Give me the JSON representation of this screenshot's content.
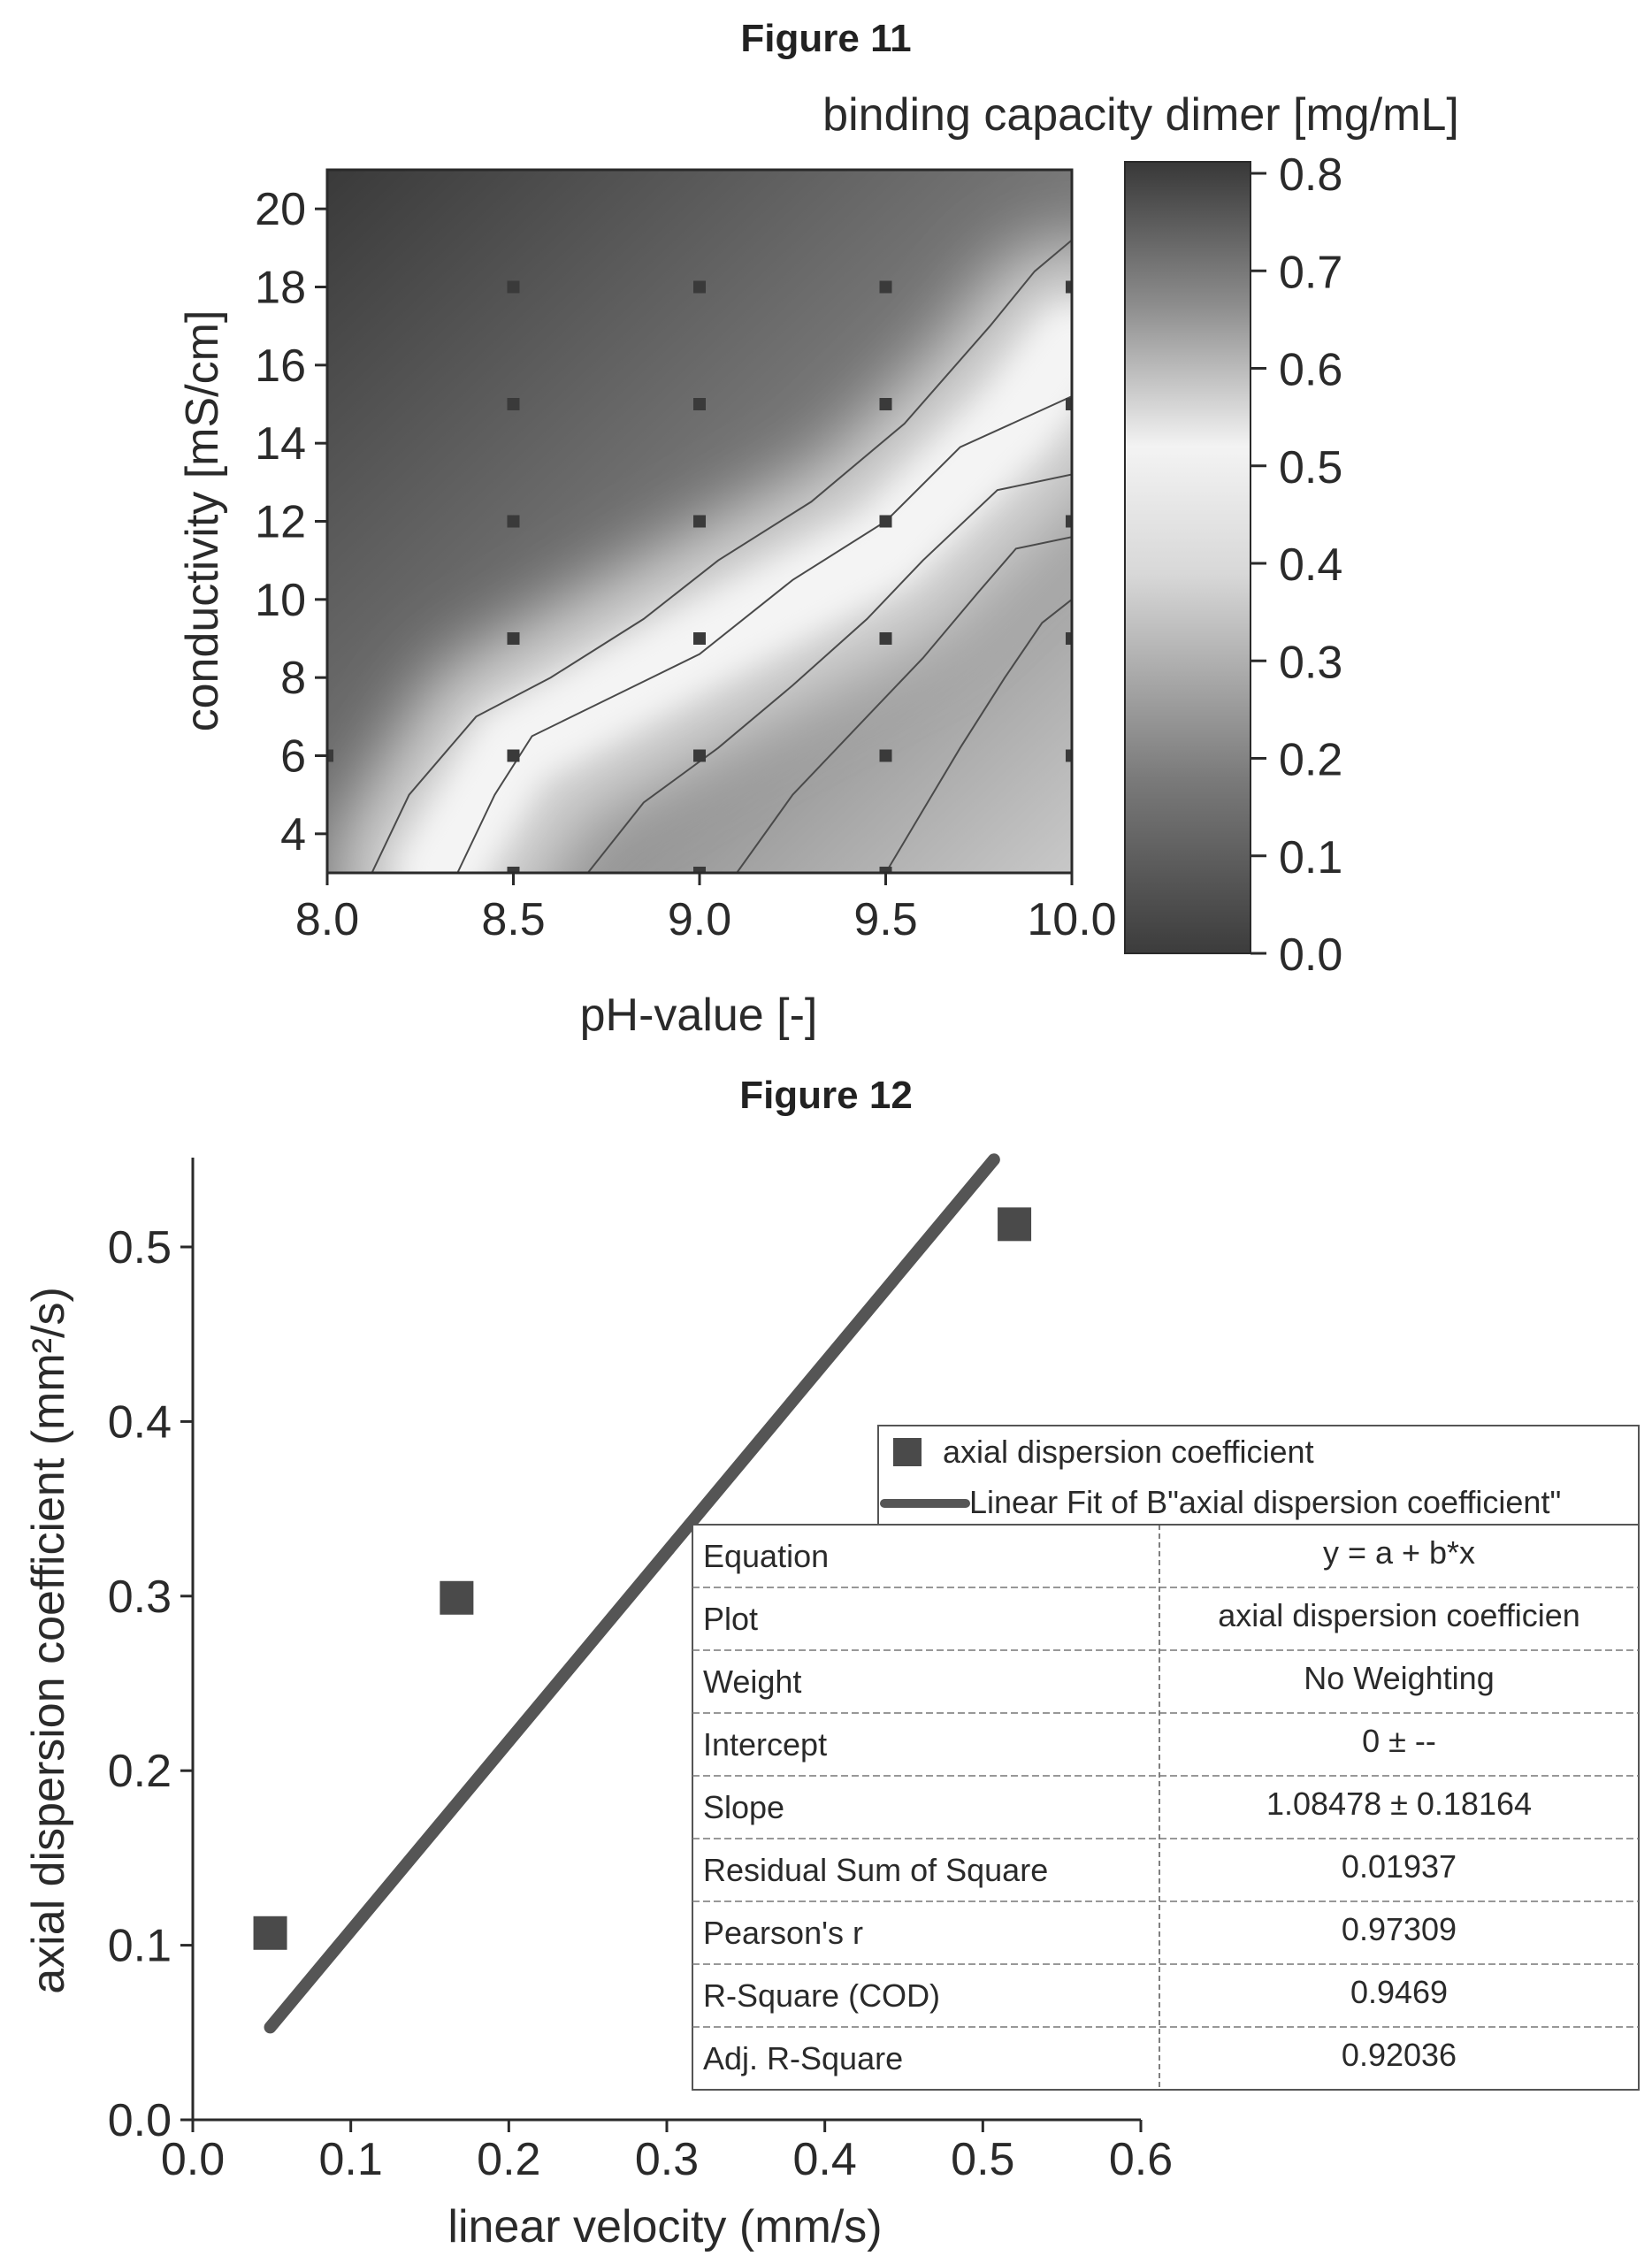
{
  "figure11": {
    "title": "Figure 11",
    "chart_data": {
      "type": "heatmap",
      "title": "binding capacity dimer [mg/mL]",
      "xlabel": "pH-value [-]",
      "ylabel": "conductivity [mS/cm]",
      "xlim": [
        8.0,
        10.0
      ],
      "ylim": [
        3,
        21
      ],
      "x_ticks": [
        "8.0",
        "8.5",
        "9.0",
        "9.5",
        "10.0"
      ],
      "y_ticks": [
        "4",
        "6",
        "8",
        "10",
        "12",
        "14",
        "16",
        "18",
        "20"
      ],
      "colorbar_ticks": [
        "0.0",
        "0.1",
        "0.2",
        "0.3",
        "0.4",
        "0.5",
        "0.6",
        "0.7",
        "0.8"
      ],
      "colorbar_range": [
        0.0,
        0.8
      ],
      "sample_points": [
        [
          8.5,
          18
        ],
        [
          9.0,
          18
        ],
        [
          9.5,
          18
        ],
        [
          10.0,
          18
        ],
        [
          8.5,
          15
        ],
        [
          9.0,
          15
        ],
        [
          9.5,
          15
        ],
        [
          10.0,
          15
        ],
        [
          8.5,
          12
        ],
        [
          9.0,
          12
        ],
        [
          9.5,
          12
        ],
        [
          10.0,
          12
        ],
        [
          8.5,
          9
        ],
        [
          9.0,
          9
        ],
        [
          9.5,
          9
        ],
        [
          10.0,
          9
        ],
        [
          8.0,
          6
        ],
        [
          8.5,
          6
        ],
        [
          9.0,
          6
        ],
        [
          9.5,
          6
        ],
        [
          10.0,
          6
        ],
        [
          8.5,
          3
        ],
        [
          9.0,
          3
        ],
        [
          9.5,
          3
        ]
      ],
      "bright_ridge": [
        [
          8.3,
          3
        ],
        [
          8.5,
          6.2
        ],
        [
          9.0,
          8.8
        ],
        [
          9.5,
          11.3
        ],
        [
          9.85,
          14.6
        ],
        [
          10.0,
          16.5
        ]
      ],
      "contour_lines": [
        [
          [
            8.12,
            3
          ],
          [
            8.22,
            5
          ],
          [
            8.4,
            7
          ],
          [
            8.6,
            8
          ],
          [
            8.85,
            9.5
          ],
          [
            9.05,
            11
          ],
          [
            9.3,
            12.5
          ],
          [
            9.55,
            14.5
          ],
          [
            9.78,
            17
          ],
          [
            9.9,
            18.4
          ],
          [
            10.0,
            19.2
          ]
        ],
        [
          [
            8.35,
            3
          ],
          [
            8.45,
            5
          ],
          [
            8.55,
            6.5
          ],
          [
            8.7,
            7.2
          ],
          [
            9.0,
            8.6
          ],
          [
            9.25,
            10.5
          ],
          [
            9.5,
            12
          ],
          [
            9.7,
            13.9
          ],
          [
            10.0,
            15.2
          ]
        ],
        [
          [
            8.7,
            3
          ],
          [
            8.85,
            4.8
          ],
          [
            9.05,
            6.2
          ],
          [
            9.25,
            7.8
          ],
          [
            9.45,
            9.5
          ],
          [
            9.6,
            11
          ],
          [
            9.8,
            12.8
          ],
          [
            10.0,
            13.2
          ]
        ],
        [
          [
            9.1,
            3
          ],
          [
            9.25,
            5
          ],
          [
            9.45,
            7
          ],
          [
            9.6,
            8.5
          ],
          [
            9.75,
            10.2
          ],
          [
            9.85,
            11.3
          ],
          [
            10.0,
            11.6
          ]
        ],
        [
          [
            9.5,
            3
          ],
          [
            9.6,
            4.6
          ],
          [
            9.7,
            6.2
          ],
          [
            9.82,
            8.0
          ],
          [
            9.92,
            9.4
          ],
          [
            10.0,
            10.0
          ]
        ]
      ]
    }
  },
  "figure12": {
    "title": "Figure 12",
    "chart_data": {
      "type": "scatter",
      "xlabel": "linear velocity (mm/s)",
      "ylabel": "axial dispersion coefficient (mm²/s)",
      "xlim": [
        0.0,
        0.6
      ],
      "ylim": [
        0.0,
        0.55
      ],
      "x_ticks": [
        "0.0",
        "0.1",
        "0.2",
        "0.3",
        "0.4",
        "0.5",
        "0.6"
      ],
      "y_ticks": [
        "0.0",
        "0.1",
        "0.2",
        "0.3",
        "0.4",
        "0.5"
      ],
      "series": [
        {
          "name": "axial dispersion coefficient",
          "kind": "points",
          "x": [
            0.049,
            0.167,
            0.52
          ],
          "y": [
            0.107,
            0.299,
            0.513
          ]
        },
        {
          "name": "Linear Fit of B\"axial dispersion coefficient\"",
          "kind": "line",
          "x": [
            0.049,
            0.507
          ],
          "y": [
            0.053,
            0.55
          ]
        }
      ],
      "fit_table": [
        {
          "label": "Equation",
          "value": "y = a + b*x"
        },
        {
          "label": "Plot",
          "value": "axial dispersion coefficien"
        },
        {
          "label": "Weight",
          "value": "No Weighting"
        },
        {
          "label": "Intercept",
          "value": "0 ± --"
        },
        {
          "label": "Slope",
          "value": "1.08478 ± 0.18164"
        },
        {
          "label": "Residual Sum of Square",
          "value": "0.01937"
        },
        {
          "label": "Pearson's r",
          "value": "0.97309"
        },
        {
          "label": "R-Square (COD)",
          "value": "0.9469"
        },
        {
          "label": "Adj. R-Square",
          "value": "0.92036"
        }
      ]
    }
  }
}
